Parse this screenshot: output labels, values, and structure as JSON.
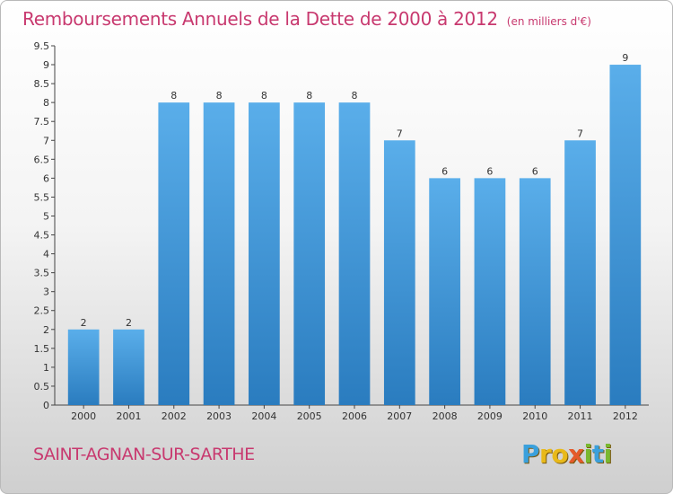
{
  "header": {
    "title": "Remboursements Annuels de la Dette de 2000 à 2012",
    "unit": "(en milliers d'€)"
  },
  "footer": {
    "commune": "SAINT-AGNAN-SUR-SARTHE",
    "logo_letters": [
      "P",
      "r",
      "o",
      "x",
      "i",
      "t",
      "i"
    ]
  },
  "colors": {
    "title": "#c8396f",
    "bar_top": "#5aaeea",
    "bar_bottom": "#2a7cbf",
    "logo": [
      "#3aa0dc",
      "#e8b91a",
      "#e8b91a",
      "#e45a2a",
      "#7ab830",
      "#3aa0dc",
      "#7ab830"
    ]
  },
  "chart_data": {
    "type": "bar",
    "title": "Remboursements Annuels de la Dette de 2000 à 2012",
    "ylabel": "",
    "xlabel": "",
    "categories": [
      "2000",
      "2001",
      "2002",
      "2003",
      "2004",
      "2005",
      "2006",
      "2007",
      "2008",
      "2009",
      "2010",
      "2011",
      "2012"
    ],
    "values": [
      2,
      2,
      8,
      8,
      8,
      8,
      8,
      7,
      6,
      6,
      6,
      7,
      9
    ],
    "data_labels": [
      "2",
      "2",
      "8",
      "8",
      "8",
      "8",
      "8",
      "7",
      "6",
      "6",
      "6",
      "7",
      "9"
    ],
    "ylim": [
      0,
      9.5
    ],
    "yticks": [
      0,
      0.5,
      1,
      1.5,
      2,
      2.5,
      3,
      3.5,
      4,
      4.5,
      5,
      5.5,
      6,
      6.5,
      7,
      7.5,
      8,
      8.5,
      9,
      9.5
    ],
    "ytick_labels": [
      "0",
      "0.5",
      "1",
      "1.5",
      "2",
      "2.5",
      "3",
      "3.5",
      "4",
      "4.5",
      "5",
      "5.5",
      "6",
      "6.5",
      "7",
      "7.5",
      "8",
      "8.5",
      "9",
      "9.5"
    ],
    "grid": false,
    "legend": "none"
  }
}
